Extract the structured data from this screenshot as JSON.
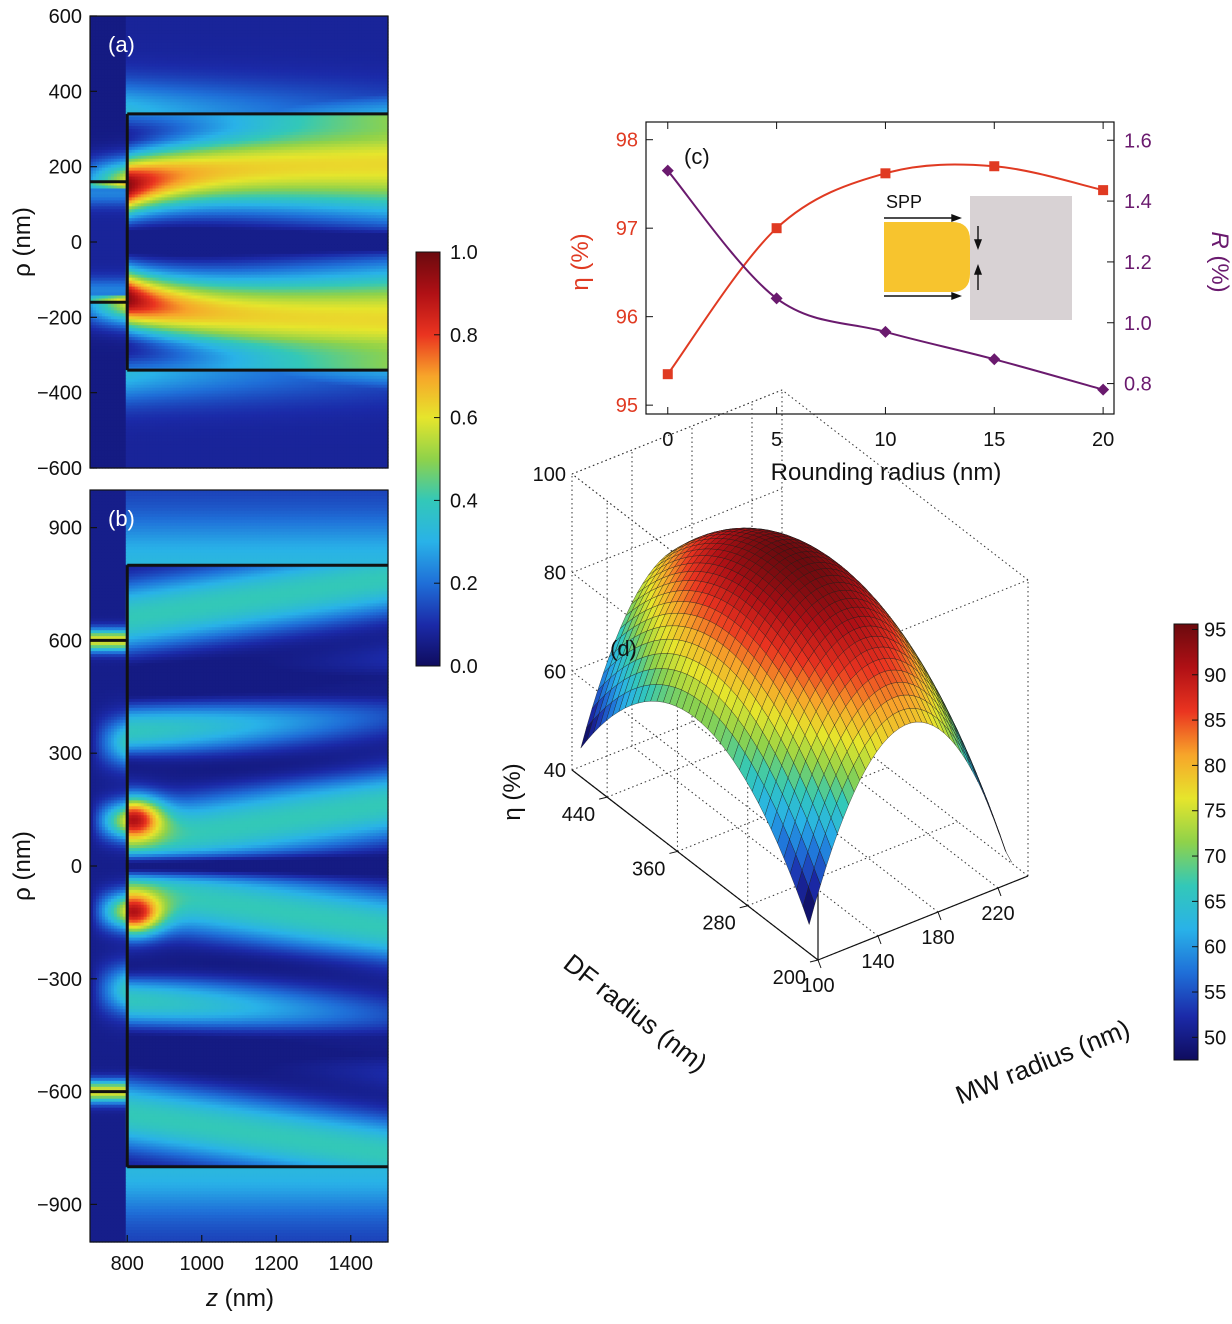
{
  "colormap": [
    "#0f0c5e",
    "#1b2aa8",
    "#1f6fd8",
    "#29b2e8",
    "#33c8b8",
    "#8fd24a",
    "#e6e52c",
    "#f7a52a",
    "#ea3420",
    "#b01015",
    "#6b0a0e"
  ],
  "panel_a": {
    "label": "(a)",
    "ylabel": "ρ (nm)",
    "yticks": [
      "600",
      "400",
      "200",
      "0",
      "−200",
      "−400",
      "−600"
    ]
  },
  "panel_b": {
    "label": "(b)",
    "ylabel": "ρ (nm)",
    "xlabel_italic": "z",
    "xlabel_rest": " (nm)",
    "yticks": [
      "900",
      "600",
      "300",
      "0",
      "−300",
      "−600",
      "−900"
    ],
    "xticks": [
      "800",
      "1000",
      "1200",
      "1400"
    ]
  },
  "colorbar_ab": {
    "ticks": [
      "1.0",
      "0.8",
      "0.6",
      "0.4",
      "0.2",
      "0.0"
    ]
  },
  "panel_c": {
    "label": "(c)",
    "xlabel": "Rounding radius (nm)",
    "ylabel_left": "η (%)",
    "ylabel_right_italic": "R",
    "ylabel_right_rest": " (%)",
    "inset_label": "SPP",
    "left_color": "#e03a22",
    "right_color": "#6a1a6e"
  },
  "panel_d": {
    "label": "(d)",
    "zlabel": "η (%)",
    "xlabel": "MW radius (nm)",
    "ylabel": "DF radius (nm)",
    "zticks": [
      "100",
      "80",
      "60",
      "40"
    ],
    "xticks": [
      "100",
      "140",
      "180",
      "220"
    ],
    "yticks": [
      "200",
      "280",
      "360",
      "440"
    ]
  },
  "colorbar_d": {
    "ticks": [
      "95",
      "90",
      "85",
      "80",
      "75",
      "70",
      "65",
      "60",
      "55",
      "50"
    ]
  },
  "chart_data": [
    {
      "type": "heatmap",
      "panel": "a",
      "xlabel": "z (nm)",
      "ylabel": "ρ (nm)",
      "xlim": [
        700,
        1500
      ],
      "ylim": [
        -600,
        600
      ],
      "yticks": [
        600,
        400,
        200,
        0,
        -200,
        -400,
        -600
      ],
      "structure": {
        "wire_radius": 160,
        "interface_z": 800,
        "film_radius": 340
      },
      "colorbar_range": [
        0,
        1
      ]
    },
    {
      "type": "heatmap",
      "panel": "b",
      "xlabel": "z (nm)",
      "ylabel": "ρ (nm)",
      "xlim": [
        700,
        1500
      ],
      "ylim": [
        -1000,
        1000
      ],
      "xticks": [
        800,
        1000,
        1200,
        1400
      ],
      "yticks": [
        900,
        600,
        300,
        0,
        -300,
        -600,
        -900
      ],
      "structure": {
        "wire_radius": 600,
        "interface_z": 800,
        "film_radius": 800
      },
      "colorbar_range": [
        0,
        1
      ]
    },
    {
      "type": "line",
      "panel": "c",
      "title": "(c)",
      "xlabel": "Rounding radius (nm)",
      "x": [
        0,
        5,
        10,
        15,
        20
      ],
      "xlim": [
        -1,
        20.5
      ],
      "xticks": [
        0,
        5,
        10,
        15,
        20
      ],
      "series": [
        {
          "name": "η (%)",
          "axis": "left",
          "marker": "square",
          "values": [
            95.35,
            97.0,
            97.62,
            97.7,
            97.43
          ]
        },
        {
          "name": "R (%)",
          "axis": "right",
          "marker": "diamond",
          "values": [
            1.5,
            1.08,
            0.97,
            0.88,
            0.78
          ]
        }
      ],
      "ylim_left": [
        94.9,
        98.2
      ],
      "yticks_left": [
        95,
        96,
        97,
        98
      ],
      "ylim_right": [
        0.7,
        1.66
      ],
      "yticks_right": [
        0.8,
        1.0,
        1.2,
        1.4,
        1.6
      ]
    },
    {
      "type": "surface",
      "panel": "d",
      "xlabel": "MW radius (nm)",
      "ylabel": "DF radius (nm)",
      "zlabel": "η (%)",
      "xlim": [
        100,
        240
      ],
      "ylim": [
        200,
        480
      ],
      "zlim": [
        40,
        100
      ],
      "xticks": [
        100,
        140,
        180,
        220
      ],
      "yticks": [
        200,
        280,
        360,
        440
      ],
      "zticks": [
        40,
        60,
        80,
        100
      ],
      "peak": {
        "x": 165,
        "y": 340,
        "z": 95
      },
      "colorbar_range": [
        48,
        95
      ],
      "colorbar_ticks": [
        95,
        90,
        85,
        80,
        75,
        70,
        65,
        60,
        55,
        50
      ]
    }
  ]
}
